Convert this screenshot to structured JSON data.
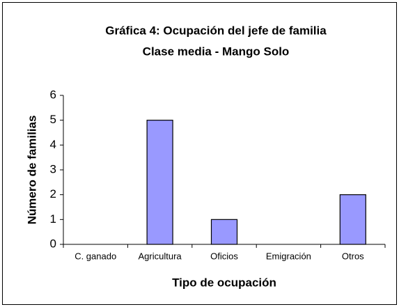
{
  "chart_data": {
    "type": "bar",
    "title": "Gráfica 4: Ocupación del jefe de familia",
    "subtitle": "Clase media - Mango Solo",
    "xlabel": "Tipo de ocupación",
    "ylabel": "Número de familias",
    "categories": [
      "C. ganado",
      "Agricultura",
      "Oficios",
      "Emigración",
      "Otros"
    ],
    "values": [
      0,
      5,
      1,
      0,
      2
    ],
    "color": "#9999ff",
    "ylim": [
      0,
      6
    ],
    "yticks": [
      0,
      1,
      2,
      3,
      4,
      5,
      6
    ],
    "grid": false
  }
}
